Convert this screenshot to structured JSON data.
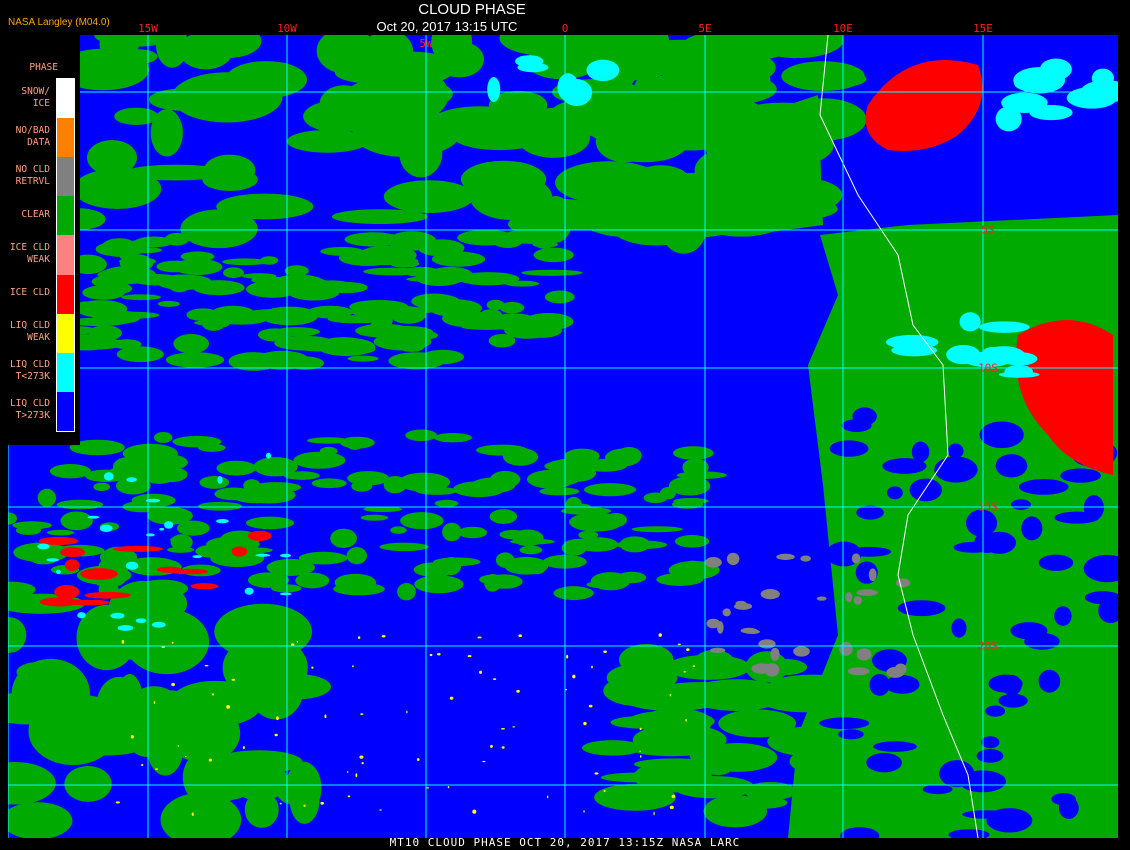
{
  "header": {
    "title": "CLOUD PHASE",
    "datetime": "Oct 20, 2017 13:15 UTC",
    "credit": "NASA Langley (M04.0)"
  },
  "map": {
    "longitude_labels": [
      "15W",
      "10W",
      "5W",
      "0",
      "5E",
      "10E",
      "15E"
    ],
    "latitude_labels": [
      "5S",
      "10S",
      "15S",
      "20S"
    ],
    "gridline_color": "#00ffff",
    "coastline_color": "#ffffff"
  },
  "legend": {
    "title": "PHASE",
    "items": [
      {
        "label": "SNOW/\nICE",
        "color": "#ffffff"
      },
      {
        "label": "NO/BAD\nDATA",
        "color": "#ff8000"
      },
      {
        "label": "NO CLD\nRETRVL",
        "color": "#808080"
      },
      {
        "label": "CLEAR",
        "color": "#00aa00"
      },
      {
        "label": "ICE CLD\nWEAK",
        "color": "#ff8080"
      },
      {
        "label": "ICE CLD",
        "color": "#ff0000"
      },
      {
        "label": "LIQ CLD\nWEAK",
        "color": "#ffff00"
      },
      {
        "label": "LIQ CLD\nT<273K",
        "color": "#00ffff"
      },
      {
        "label": "LIQ CLD\nT>273K",
        "color": "#0000ff"
      }
    ]
  },
  "footer": {
    "caption": "MT10  CLOUD PHASE   OCT 20, 2017 13:15Z   NASA LARC"
  }
}
